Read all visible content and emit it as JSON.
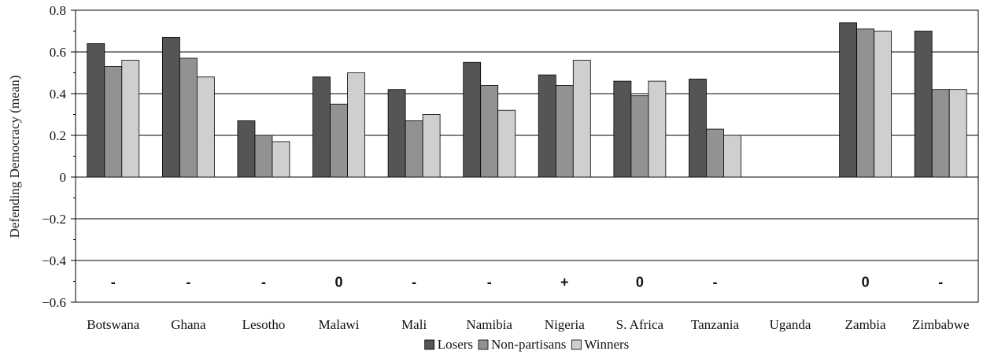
{
  "chart_data": {
    "type": "bar",
    "ylabel": "Defending Democracy (mean)",
    "ylim": [
      -0.6,
      0.8
    ],
    "yticks": [
      0.8,
      0.6,
      0.4,
      0.2,
      0,
      -0.2,
      -0.4,
      -0.6
    ],
    "ytick_labels": [
      "0.8",
      "0.6",
      "0.4",
      "0.2",
      "0",
      "−0.2",
      "−0.4",
      "−0.6"
    ],
    "gridlines": [
      0.6,
      0.4,
      0.2,
      0,
      -0.2,
      -0.4
    ],
    "categories": [
      "Botswana",
      "Ghana",
      "Lesotho",
      "Malawi",
      "Mali",
      "Namibia",
      "Nigeria",
      "S. Africa",
      "Tanzania",
      "Uganda",
      "Zambia",
      "Zimbabwe"
    ],
    "series": [
      {
        "name": "Losers",
        "color": "#555555",
        "values": [
          0.64,
          0.67,
          0.27,
          0.48,
          0.42,
          0.55,
          0.49,
          0.46,
          0.47,
          null,
          0.74,
          0.7
        ]
      },
      {
        "name": "Non-partisans",
        "color": "#929292",
        "values": [
          0.53,
          0.57,
          0.2,
          0.35,
          0.27,
          0.44,
          0.44,
          0.39,
          0.23,
          null,
          0.71,
          0.42
        ]
      },
      {
        "name": "Winners",
        "color": "#cfcfcf",
        "values": [
          0.56,
          0.48,
          0.17,
          0.5,
          0.3,
          0.32,
          0.56,
          0.46,
          0.2,
          null,
          0.7,
          0.42
        ]
      }
    ],
    "significance_markers": [
      "-",
      "-",
      "-",
      "0",
      "-",
      "-",
      "+",
      "0",
      "-",
      "",
      "0",
      "-"
    ],
    "marker_y": -0.5,
    "legend_position": "bottom-center"
  }
}
